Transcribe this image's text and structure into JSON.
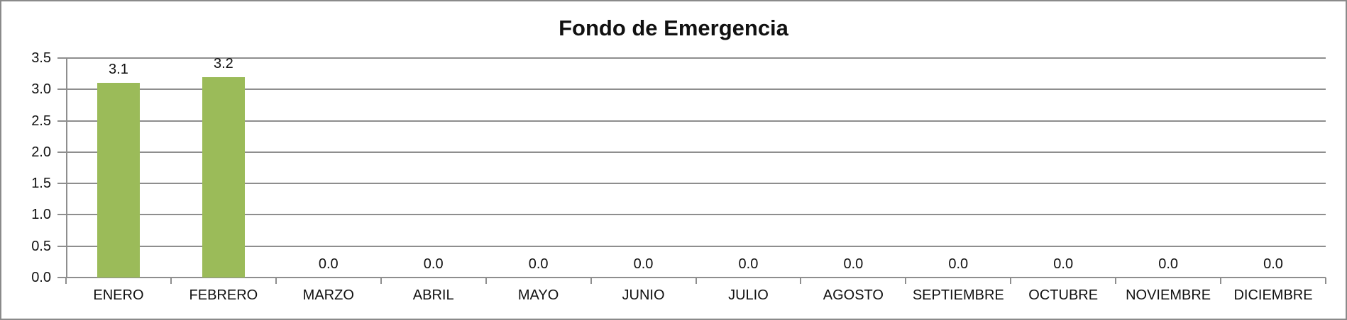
{
  "chart": {
    "title": "Fondo de Emergencia"
  },
  "chart_data": {
    "type": "bar",
    "title": "Fondo de Emergencia",
    "categories": [
      "ENERO",
      "FEBRERO",
      "MARZO",
      "ABRIL",
      "MAYO",
      "JUNIO",
      "JULIO",
      "AGOSTO",
      "SEPTIEMBRE",
      "OCTUBRE",
      "NOVIEMBRE",
      "DICIEMBRE"
    ],
    "values": [
      3.1,
      3.2,
      0.0,
      0.0,
      0.0,
      0.0,
      0.0,
      0.0,
      0.0,
      0.0,
      0.0,
      0.0
    ],
    "data_labels": [
      "3.1",
      "3.2",
      "0.0",
      "0.0",
      "0.0",
      "0.0",
      "0.0",
      "0.0",
      "0.0",
      "0.0",
      "0.0",
      "0.0"
    ],
    "xlabel": "",
    "ylabel": "",
    "ylim": [
      0,
      3.5
    ],
    "ytick_step": 0.5,
    "ytick_labels": [
      "0.0",
      "0.5",
      "1.0",
      "1.5",
      "2.0",
      "2.5",
      "3.0",
      "3.5"
    ],
    "grid": true,
    "legend": false,
    "colors": {
      "bar_fill": "#9BBB59",
      "gridline": "#8e8e8e",
      "axis": "#8a8a8a",
      "text": "#111111",
      "background": "#ffffff",
      "frame_border": "#8a8a8a"
    }
  }
}
